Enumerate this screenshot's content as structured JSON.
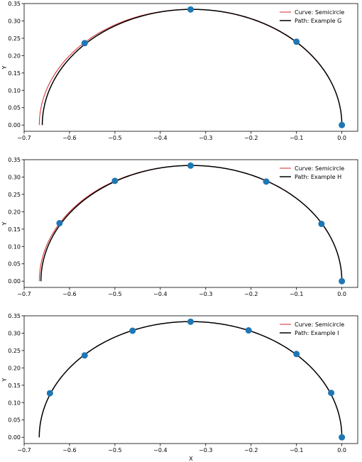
{
  "chart_data": [
    {
      "type": "line",
      "xlabel": "",
      "ylabel": "Y",
      "xlim": [
        -0.7,
        0.035
      ],
      "ylim": [
        -0.018,
        0.35
      ],
      "xticks": [
        -0.7,
        -0.6,
        -0.5,
        -0.4,
        -0.3,
        -0.2,
        -0.1,
        0.0
      ],
      "xtick_labels": [
        "−0.7",
        "−0.6",
        "−0.5",
        "−0.4",
        "−0.3",
        "−0.2",
        "−0.1",
        "0.0"
      ],
      "yticks": [
        0.0,
        0.05,
        0.1,
        0.15,
        0.2,
        0.25,
        0.3,
        0.35
      ],
      "ytick_labels": [
        "0.00",
        "0.05",
        "0.10",
        "0.15",
        "0.20",
        "0.25",
        "0.30",
        "0.35"
      ],
      "legend_position": "top-right",
      "series": [
        {
          "name": "Curve: Semicircle",
          "style": "curve",
          "color": "#d62728",
          "center": -0.3333,
          "radius": 0.3333
        },
        {
          "name": "Path: Example G",
          "style": "path",
          "color": "#000000",
          "x_end": -0.66
        }
      ],
      "points": {
        "color": "#1f77b4",
        "x": [
          0.0,
          -0.1,
          -0.3333,
          -0.5667
        ],
        "y": [
          0.0,
          0.24,
          0.333,
          0.236
        ]
      }
    },
    {
      "type": "line",
      "xlabel": "",
      "ylabel": "Y",
      "xlim": [
        -0.7,
        0.035
      ],
      "ylim": [
        -0.018,
        0.35
      ],
      "xticks": [
        -0.7,
        -0.6,
        -0.5,
        -0.4,
        -0.3,
        -0.2,
        -0.1,
        0.0
      ],
      "xtick_labels": [
        "−0.7",
        "−0.6",
        "−0.5",
        "−0.4",
        "−0.3",
        "−0.2",
        "−0.1",
        "0.0"
      ],
      "yticks": [
        0.0,
        0.05,
        0.1,
        0.15,
        0.2,
        0.25,
        0.3,
        0.35
      ],
      "ytick_labels": [
        "0.00",
        "0.05",
        "0.10",
        "0.15",
        "0.20",
        "0.25",
        "0.30",
        "0.35"
      ],
      "legend_position": "top-right",
      "series": [
        {
          "name": "Curve: Semicircle",
          "style": "curve",
          "color": "#d62728",
          "center": -0.3333,
          "radius": 0.3333
        },
        {
          "name": "Path: Example H",
          "style": "path",
          "color": "#000000",
          "x_end": -0.663
        }
      ],
      "points": {
        "color": "#1f77b4",
        "x": [
          0.0,
          -0.045,
          -0.1667,
          -0.3333,
          -0.5,
          -0.622
        ],
        "y": [
          0.0,
          0.165,
          0.287,
          0.333,
          0.289,
          0.167
        ]
      }
    },
    {
      "type": "line",
      "xlabel": "X",
      "ylabel": "Y",
      "xlim": [
        -0.7,
        0.035
      ],
      "ylim": [
        -0.018,
        0.35
      ],
      "xticks": [
        -0.7,
        -0.6,
        -0.5,
        -0.4,
        -0.3,
        -0.2,
        -0.1,
        0.0
      ],
      "xtick_labels": [
        "−0.7",
        "−0.6",
        "−0.5",
        "−0.4",
        "−0.3",
        "−0.2",
        "−0.1",
        "0.0"
      ],
      "yticks": [
        0.0,
        0.05,
        0.1,
        0.15,
        0.2,
        0.25,
        0.3,
        0.35
      ],
      "ytick_labels": [
        "0.00",
        "0.05",
        "0.10",
        "0.15",
        "0.20",
        "0.25",
        "0.30",
        "0.35"
      ],
      "legend_position": "top-right",
      "series": [
        {
          "name": "Curve: Semicircle",
          "style": "curve",
          "color": "#d62728",
          "center": -0.3333,
          "radius": 0.3333
        },
        {
          "name": "Path: Example I",
          "style": "path",
          "color": "#000000",
          "x_end": -0.6667
        }
      ],
      "points": {
        "color": "#1f77b4",
        "x": [
          0.0,
          -0.0235,
          -0.1,
          -0.2055,
          -0.3333,
          -0.4611,
          -0.5667,
          -0.6432
        ],
        "y": [
          0.0,
          0.128,
          0.24,
          0.308,
          0.333,
          0.307,
          0.236,
          0.127
        ]
      }
    }
  ]
}
